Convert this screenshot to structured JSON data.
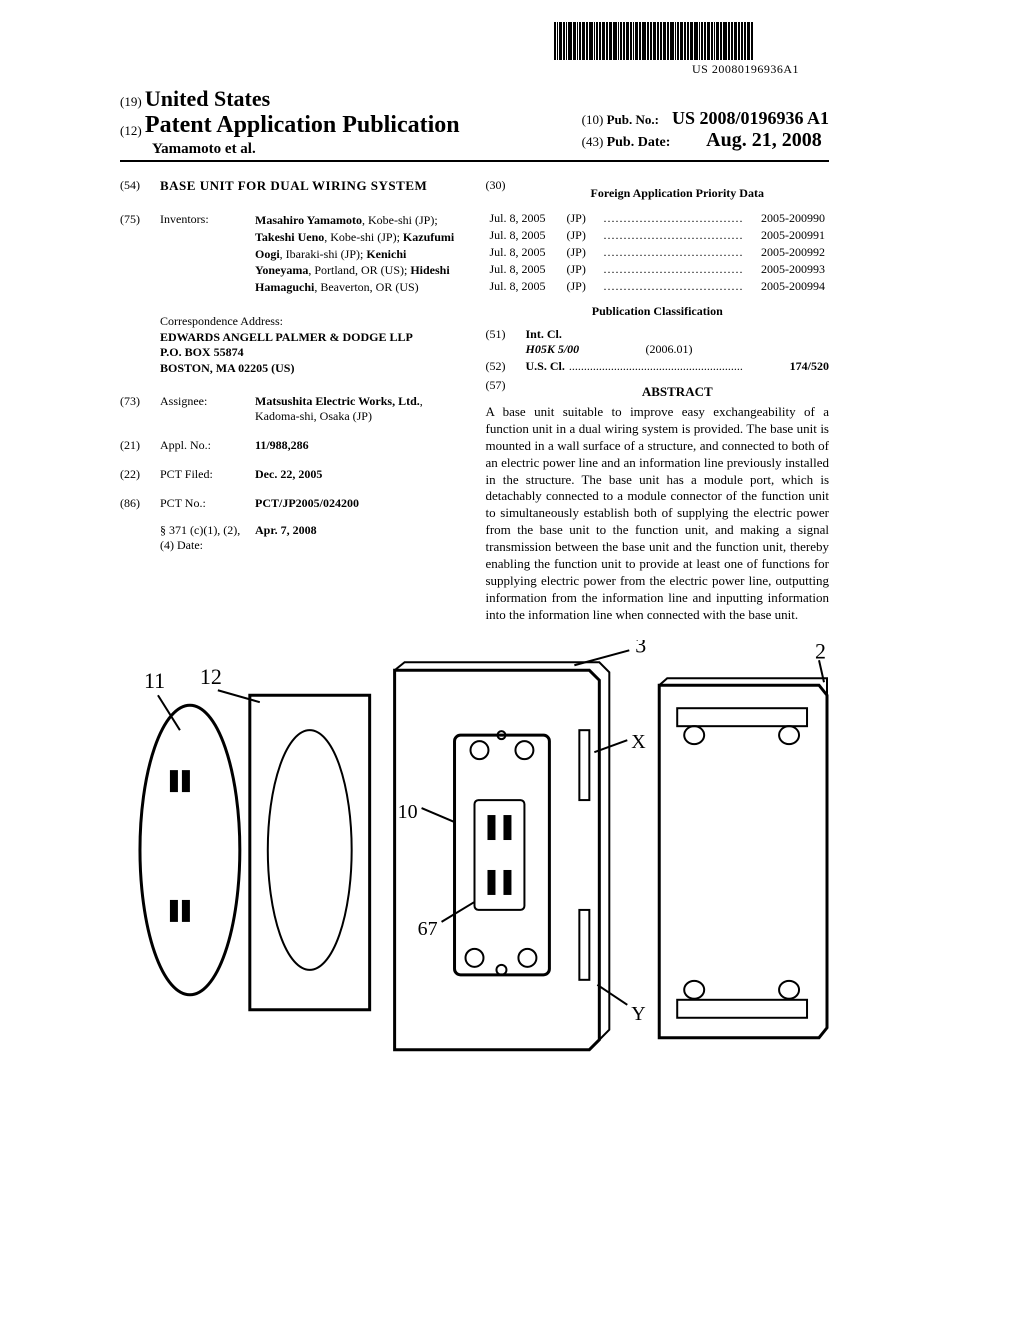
{
  "barcode_sub": "US 20080196936A1",
  "header": {
    "country_code": "(19)",
    "country": "United States",
    "pub_type_code": "(12)",
    "pub_type": "Patent Application Publication",
    "authors_line": "Yamamoto et al.",
    "pub_no_code": "(10)",
    "pub_no_label": "Pub. No.:",
    "pub_no": "US 2008/0196936 A1",
    "pub_date_code": "(43)",
    "pub_date_label": "Pub. Date:",
    "pub_date": "Aug. 21, 2008"
  },
  "left_col": {
    "title_code": "(54)",
    "title": "BASE UNIT FOR DUAL WIRING SYSTEM",
    "inventors_code": "(75)",
    "inventors_label": "Inventors:",
    "inventors_html": "Masahiro Yamamoto|, Kobe-shi (JP); |Takeshi Ueno|, Kobe-shi (JP); |Kazufumi Oogi|, Ibaraki-shi (JP); |Kenichi Yoneyama|, Portland, OR (US); |Hideshi Hamaguchi|, Beaverton, OR (US)",
    "correspondence_label": "Correspondence Address:",
    "correspondence": [
      "EDWARDS ANGELL PALMER & DODGE LLP",
      "P.O. BOX 55874",
      "BOSTON, MA 02205 (US)"
    ],
    "assignee_code": "(73)",
    "assignee_label": "Assignee:",
    "assignee_name": "Matsushita Electric Works, Ltd.",
    "assignee_loc": ", Kadoma-shi, Osaka (JP)",
    "appl_code": "(21)",
    "appl_label": "Appl. No.:",
    "appl_no": "11/988,286",
    "pct_filed_code": "(22)",
    "pct_filed_label": "PCT Filed:",
    "pct_filed": "Dec. 22, 2005",
    "pct_no_code": "(86)",
    "pct_no_label": "PCT No.:",
    "pct_no": "PCT/JP2005/024200",
    "s371_label": "§ 371 (c)(1), (2), (4) Date:",
    "s371_date": "Apr. 7, 2008"
  },
  "right_col": {
    "priority_code": "(30)",
    "priority_heading": "Foreign Application Priority Data",
    "priority": [
      {
        "date": "Jul. 8, 2005",
        "country": "(JP)",
        "num": "2005-200990"
      },
      {
        "date": "Jul. 8, 2005",
        "country": "(JP)",
        "num": "2005-200991"
      },
      {
        "date": "Jul. 8, 2005",
        "country": "(JP)",
        "num": "2005-200992"
      },
      {
        "date": "Jul. 8, 2005",
        "country": "(JP)",
        "num": "2005-200993"
      },
      {
        "date": "Jul. 8, 2005",
        "country": "(JP)",
        "num": "2005-200994"
      }
    ],
    "pub_class_heading": "Publication Classification",
    "intcl_code": "(51)",
    "intcl_label": "Int. Cl.",
    "intcl_class": "H05K 5/00",
    "intcl_year": "(2006.01)",
    "uscl_code": "(52)",
    "uscl_label": "U.S. Cl.",
    "uscl_val": "174/520",
    "abstract_code": "(57)",
    "abstract_heading": "ABSTRACT",
    "abstract": "A base unit suitable to improve easy exchangeability of a function unit in a dual wiring system is provided. The base unit is mounted in a wall surface of a structure, and connected to both of an electric power line and an information line previously installed in the structure. The base unit has a module port, which is detachably connected to a module connector of the function unit to simultaneously establish both of supplying the electric power from the base unit to the function unit, and making a signal transmission between the base unit and the function unit, thereby enabling the function unit to provide at least one of functions for supplying electric power from the electric power line, outputting information from the information line and inputting information into the information line when connected with the base unit."
  },
  "figure_labels": [
    "11",
    "12",
    "10",
    "67",
    "3",
    "X",
    "Y",
    "2"
  ]
}
